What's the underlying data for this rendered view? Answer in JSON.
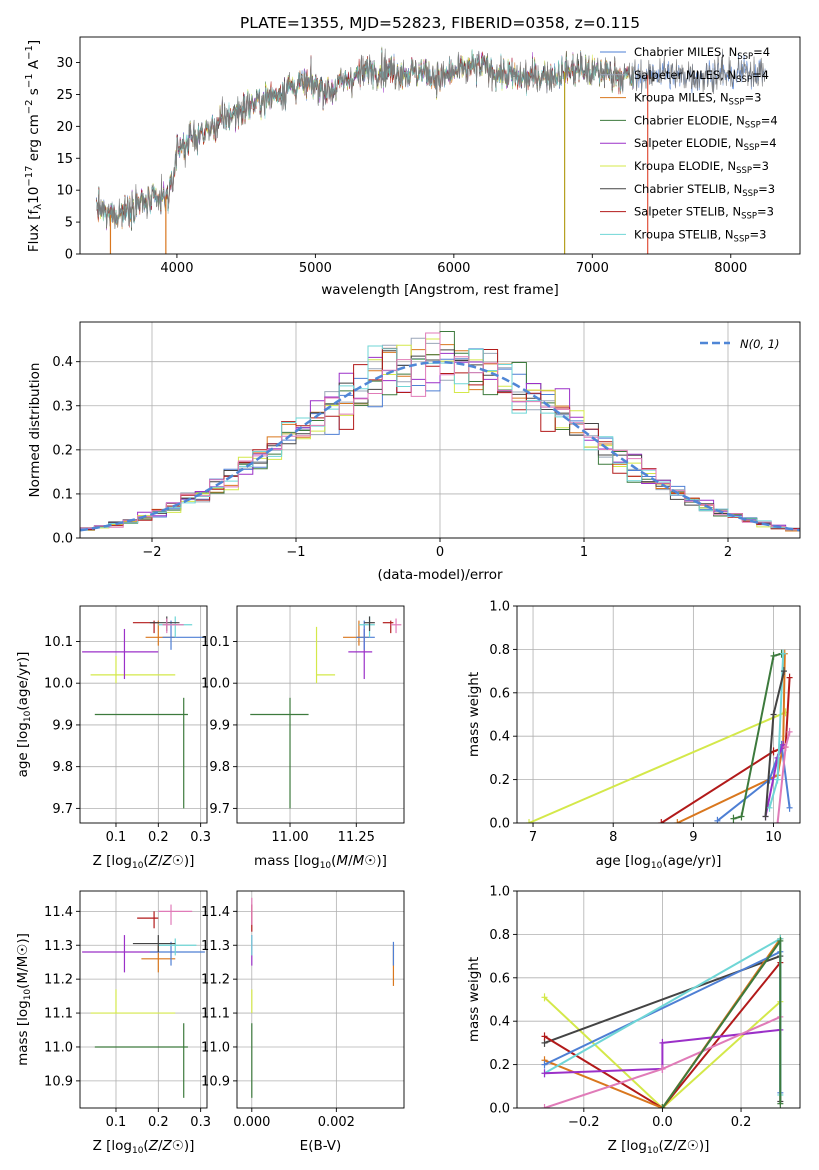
{
  "figure_title": "PLATE=1355, MJD=52823, FIBERID=0358, z=0.115",
  "colors": {
    "chabrier_miles": "#4e7fd4",
    "salpeter_miles": "#9aa6b8",
    "kroupa_miles": "#d9771e",
    "chabrier_elodie": "#3d7a3d",
    "salpeter_elodie": "#9b30c8",
    "kroupa_elodie": "#d4e84a",
    "chabrier_stelib": "#444444",
    "salpeter_stelib": "#b21a1a",
    "kroupa_stelib": "#6fd6d6",
    "pink": "#e07bb8",
    "gauss": "#4f86d6",
    "grid": "#b0b0b0"
  },
  "chart_data": [
    {
      "id": "spectrum",
      "type": "line",
      "title": "PLATE=1355, MJD=52823, FIBERID=0358, z=0.115",
      "xlabel": "wavelength [Angstrom, rest frame]",
      "ylabel": "Flux [f_λ 10^-17 erg cm^-2 s^-1 A^-1]",
      "xlim": [
        3300,
        8500
      ],
      "ylim": [
        0,
        34
      ],
      "xticks": [
        4000,
        5000,
        6000,
        7000,
        8000
      ],
      "yticks": [
        0,
        5,
        10,
        15,
        20,
        25,
        30
      ],
      "grid": false,
      "legend_position": "top-right",
      "continuum": {
        "x": [
          3420,
          3500,
          3600,
          3700,
          3800,
          3900,
          3960,
          4000,
          4100,
          4200,
          4300,
          4400,
          4500,
          4600,
          4700,
          4800,
          4900,
          5000,
          5100,
          5200,
          5300,
          5400,
          5500,
          5600,
          5700,
          5800,
          5900,
          6000,
          6100,
          6200,
          6300,
          6400,
          6500,
          6600,
          6700,
          6800,
          6900,
          7000,
          7100,
          7200,
          7300,
          7400,
          7500,
          7600,
          7700,
          7800,
          7900,
          8000,
          8100,
          8250
        ],
        "y": [
          7.5,
          6.0,
          6.5,
          8.0,
          8.0,
          8.5,
          10.0,
          16.5,
          18.0,
          19.0,
          20.5,
          22.0,
          23.0,
          24.0,
          25.0,
          26.0,
          26.5,
          26.5,
          25.5,
          27.0,
          28.0,
          29.0,
          29.0,
          28.5,
          28.5,
          28.5,
          27.5,
          28.5,
          29.0,
          29.5,
          28.5,
          28.0,
          27.5,
          28.0,
          28.0,
          28.5,
          29.0,
          28.5,
          28.5,
          28.0,
          27.5,
          28.0,
          28.5,
          28.0,
          28.0,
          28.0,
          28.5,
          28.0,
          28.5,
          28.5
        ]
      },
      "series": [
        {
          "name": "Chabrier MILES, N_SSP=4",
          "color": "#4e7fd4"
        },
        {
          "name": "Salpeter MILES, N_SSP=4",
          "color": "#9aa6b8"
        },
        {
          "name": "Kroupa MILES, N_SSP=3",
          "color": "#d9771e"
        },
        {
          "name": "Chabrier ELODIE, N_SSP=4",
          "color": "#3d7a3d"
        },
        {
          "name": "Salpeter ELODIE, N_SSP=4",
          "color": "#9b30c8"
        },
        {
          "name": "Kroupa ELODIE, N_SSP=3",
          "color": "#d4e84a"
        },
        {
          "name": "Chabrier STELIB, N_SSP=3",
          "color": "#444444"
        },
        {
          "name": "Salpeter STELIB, N_SSP=3",
          "color": "#b21a1a"
        },
        {
          "name": "Kroupa STELIB, N_SSP=3",
          "color": "#6fd6d6"
        }
      ],
      "vertical_drops": [
        {
          "x": 3520,
          "color": "#d9771e"
        },
        {
          "x": 3920,
          "color": "#d9771e"
        },
        {
          "x": 6800,
          "color": "#b5a020"
        },
        {
          "x": 7400,
          "color": "#e0503a"
        }
      ]
    },
    {
      "id": "residuals",
      "type": "histogram",
      "xlabel": "(data-model)/error",
      "ylabel": "Normed distribution",
      "xlim": [
        -2.5,
        2.5
      ],
      "ylim": [
        0,
        0.49
      ],
      "xticks": [
        -2,
        -1,
        0,
        1,
        2
      ],
      "yticks": [
        0.0,
        0.1,
        0.2,
        0.3,
        0.4
      ],
      "grid": true,
      "legend_position": "top-right",
      "legend": [
        {
          "name": "N(0,1)",
          "style": "dashed",
          "color": "#4f86d6"
        }
      ],
      "bin_width": 0.1,
      "bin_start": -2.5
    },
    {
      "id": "age_vs_Z",
      "type": "errorbar",
      "xlabel": "Z [log10(Z/Z☉)]",
      "ylabel": "age  [log10(age/yr)]",
      "xlim": [
        0.015,
        0.315
      ],
      "ylim": [
        9.665,
        10.185
      ],
      "xticks": [
        0.1,
        0.2,
        0.3
      ],
      "yticks": [
        9.7,
        9.8,
        9.9,
        10.0,
        10.1
      ],
      "grid": true,
      "points": [
        {
          "x": 0.26,
          "y": 9.925,
          "xerr": [
            0.05,
            0.27
          ],
          "yerr": [
            9.7,
            9.965
          ],
          "color": "#3d7a3d"
        },
        {
          "x": 0.1,
          "y": 10.02,
          "xerr": [
            0.04,
            0.24
          ],
          "yerr": [
            10.0,
            10.065
          ],
          "color": "#d4e84a"
        },
        {
          "x": 0.12,
          "y": 10.075,
          "xerr": [
            0.02,
            0.2
          ],
          "yerr": [
            10.01,
            10.13
          ],
          "color": "#9b30c8"
        },
        {
          "x": 0.19,
          "y": 10.145,
          "xerr": [
            0.14,
            0.2
          ],
          "yerr": [
            10.12,
            10.15
          ],
          "color": "#b21a1a"
        },
        {
          "x": 0.2,
          "y": 10.11,
          "xerr": [
            0.17,
            0.24
          ],
          "yerr": [
            10.09,
            10.15
          ],
          "color": "#d9771e"
        },
        {
          "x": 0.23,
          "y": 10.11,
          "xerr": [
            0.21,
            0.31
          ],
          "yerr": [
            10.08,
            10.15
          ],
          "color": "#4e7fd4"
        },
        {
          "x": 0.24,
          "y": 10.14,
          "xerr": [
            0.2,
            0.28
          ],
          "yerr": [
            10.11,
            10.16
          ],
          "color": "#6fd6d6"
        },
        {
          "x": 0.22,
          "y": 10.145,
          "xerr": [
            0.18,
            0.25
          ],
          "yerr": [
            10.125,
            10.16
          ],
          "color": "#444444"
        },
        {
          "x": 0.22,
          "y": 10.14,
          "xerr": [
            0.21,
            0.26
          ],
          "yerr": [
            10.12,
            10.155
          ],
          "color": "#e07bb8"
        }
      ]
    },
    {
      "id": "age_vs_mass",
      "type": "errorbar",
      "xlabel": "mass [log10(M/M☉)]",
      "ylabel": "",
      "xlim": [
        10.8,
        11.43
      ],
      "ylim": [
        9.665,
        10.185
      ],
      "xticks": [
        11.0,
        11.25
      ],
      "yticks": [
        9.7,
        9.8,
        9.9,
        10.0,
        10.1
      ],
      "grid": true,
      "points": [
        {
          "x": 11.0,
          "y": 9.925,
          "xerr": [
            10.85,
            11.07
          ],
          "yerr": [
            9.7,
            9.965
          ],
          "color": "#3d7a3d"
        },
        {
          "x": 11.1,
          "y": 10.02,
          "xerr": [
            11.1,
            11.17
          ],
          "yerr": [
            10.0,
            10.135
          ],
          "color": "#d4e84a"
        },
        {
          "x": 11.28,
          "y": 10.075,
          "xerr": [
            11.22,
            11.31
          ],
          "yerr": [
            10.01,
            10.13
          ],
          "color": "#9b30c8"
        },
        {
          "x": 11.38,
          "y": 10.145,
          "xerr": [
            11.35,
            11.39
          ],
          "yerr": [
            10.12,
            10.15
          ],
          "color": "#b21a1a"
        },
        {
          "x": 11.26,
          "y": 10.11,
          "xerr": [
            11.2,
            11.3
          ],
          "yerr": [
            10.09,
            10.15
          ],
          "color": "#d9771e"
        },
        {
          "x": 11.28,
          "y": 10.11,
          "xerr": [
            11.25,
            11.32
          ],
          "yerr": [
            10.08,
            10.15
          ],
          "color": "#4e7fd4"
        },
        {
          "x": 11.3,
          "y": 10.14,
          "xerr": [
            11.26,
            11.32
          ],
          "yerr": [
            10.11,
            10.16
          ],
          "color": "#6fd6d6"
        },
        {
          "x": 11.3,
          "y": 10.145,
          "xerr": [
            11.28,
            11.32
          ],
          "yerr": [
            10.125,
            10.16
          ],
          "color": "#444444"
        },
        {
          "x": 11.4,
          "y": 10.14,
          "xerr": [
            11.38,
            11.42
          ],
          "yerr": [
            10.12,
            10.155
          ],
          "color": "#e07bb8"
        }
      ]
    },
    {
      "id": "mass_weight_vs_age",
      "type": "line",
      "xlabel": "age  [log10(age/yr)]",
      "ylabel": "mass weight",
      "xlim": [
        6.8,
        10.33
      ],
      "ylim": [
        0,
        1.0
      ],
      "xticks": [
        7,
        8,
        9,
        10
      ],
      "yticks": [
        0.0,
        0.2,
        0.4,
        0.6,
        0.8,
        1.0
      ],
      "grid": true,
      "series": [
        {
          "color": "#d4e84a",
          "x": [
            6.95,
            10.15
          ],
          "y": [
            0.0,
            0.51
          ]
        },
        {
          "color": "#b21a1a",
          "x": [
            8.6,
            10.0,
            10.15,
            10.2
          ],
          "y": [
            0.0,
            0.33,
            0.35,
            0.67
          ]
        },
        {
          "color": "#d9771e",
          "x": [
            8.8,
            10.05,
            10.12,
            10.14
          ],
          "y": [
            0.0,
            0.22,
            0.36,
            0.78
          ]
        },
        {
          "color": "#4e7fd4",
          "x": [
            9.3,
            9.95,
            10.1,
            10.2
          ],
          "y": [
            0.01,
            0.2,
            0.36,
            0.07
          ]
        },
        {
          "color": "#3d7a3d",
          "x": [
            9.5,
            9.6,
            10.0,
            10.1
          ],
          "y": [
            0.02,
            0.03,
            0.77,
            0.78
          ]
        },
        {
          "color": "#9b30c8",
          "x": [
            9.9,
            10.05,
            10.12
          ],
          "y": [
            0.03,
            0.3,
            0.36
          ]
        },
        {
          "color": "#6fd6d6",
          "x": [
            9.95,
            10.05,
            10.12
          ],
          "y": [
            0.07,
            0.2,
            0.78
          ]
        },
        {
          "color": "#e07bb8",
          "x": [
            10.05,
            10.15,
            10.2
          ],
          "y": [
            0.0,
            0.35,
            0.42
          ]
        },
        {
          "color": "#444444",
          "x": [
            9.9,
            10.0,
            10.13
          ],
          "y": [
            0.03,
            0.5,
            0.7
          ]
        }
      ]
    },
    {
      "id": "mass_vs_Z",
      "type": "errorbar",
      "xlabel": "Z [log10(Z/Z☉)]",
      "ylabel": "mass [log10(M/M☉)]",
      "xlim": [
        0.015,
        0.315
      ],
      "ylim": [
        10.82,
        11.46
      ],
      "xticks": [
        0.1,
        0.2,
        0.3
      ],
      "yticks": [
        10.9,
        11.0,
        11.1,
        11.2,
        11.3,
        11.4
      ],
      "grid": true,
      "points": [
        {
          "x": 0.26,
          "y": 11.0,
          "xerr": [
            0.05,
            0.27
          ],
          "yerr": [
            10.85,
            11.07
          ],
          "color": "#3d7a3d"
        },
        {
          "x": 0.1,
          "y": 11.1,
          "xerr": [
            0.04,
            0.24
          ],
          "yerr": [
            11.1,
            11.17
          ],
          "color": "#d4e84a"
        },
        {
          "x": 0.12,
          "y": 11.28,
          "xerr": [
            0.02,
            0.2
          ],
          "yerr": [
            11.22,
            11.33
          ],
          "color": "#9b30c8"
        },
        {
          "x": 0.19,
          "y": 11.38,
          "xerr": [
            0.15,
            0.2
          ],
          "yerr": [
            11.35,
            11.4
          ],
          "color": "#b21a1a"
        },
        {
          "x": 0.2,
          "y": 11.26,
          "xerr": [
            0.16,
            0.24
          ],
          "yerr": [
            11.22,
            11.3
          ],
          "color": "#d9771e"
        },
        {
          "x": 0.23,
          "y": 11.28,
          "xerr": [
            0.18,
            0.31
          ],
          "yerr": [
            11.24,
            11.31
          ],
          "color": "#4e7fd4"
        },
        {
          "x": 0.24,
          "y": 11.3,
          "xerr": [
            0.2,
            0.29
          ],
          "yerr": [
            11.27,
            11.32
          ],
          "color": "#6fd6d6"
        },
        {
          "x": 0.2,
          "y": 11.305,
          "xerr": [
            0.14,
            0.24
          ],
          "yerr": [
            11.28,
            11.33
          ],
          "color": "#444444"
        },
        {
          "x": 0.23,
          "y": 11.4,
          "xerr": [
            0.2,
            0.28
          ],
          "yerr": [
            11.36,
            11.42
          ],
          "color": "#e07bb8"
        }
      ]
    },
    {
      "id": "mass_vs_EBV",
      "type": "errorbar",
      "xlabel": "E(B-V)",
      "ylabel": "",
      "xlim": [
        -0.00035,
        0.0036
      ],
      "ylim": [
        10.82,
        11.46
      ],
      "xticks": [
        0.0,
        0.002
      ],
      "xtick_labels": [
        "0.000",
        "0.002"
      ],
      "yticks": [
        10.9,
        11.0,
        11.1,
        11.2,
        11.3,
        11.4
      ],
      "grid": true,
      "points": [
        {
          "x": 0.0,
          "y": 11.0,
          "xerr": [
            0.0,
            0.0
          ],
          "yerr": [
            10.85,
            11.07
          ],
          "color": "#3d7a3d"
        },
        {
          "x": 0.0,
          "y": 11.1,
          "xerr": [
            0.0,
            0.0
          ],
          "yerr": [
            11.1,
            11.17
          ],
          "color": "#d4e84a"
        },
        {
          "x": 0.0,
          "y": 11.28,
          "xerr": [
            0.0,
            0.0
          ],
          "yerr": [
            11.24,
            11.33
          ],
          "color": "#9b30c8"
        },
        {
          "x": 0.0,
          "y": 11.38,
          "xerr": [
            0.0,
            0.0
          ],
          "yerr": [
            11.34,
            11.42
          ],
          "color": "#b21a1a"
        },
        {
          "x": 0.0,
          "y": 11.4,
          "xerr": [
            0.0,
            0.0
          ],
          "yerr": [
            11.36,
            11.44
          ],
          "color": "#e07bb8"
        },
        {
          "x": 0.0,
          "y": 11.3,
          "xerr": [
            0.0,
            0.0
          ],
          "yerr": [
            11.27,
            11.33
          ],
          "color": "#6fd6d6"
        },
        {
          "x": 0.00335,
          "y": 11.26,
          "xerr": [
            0.00335,
            0.00335
          ],
          "yerr": [
            11.18,
            11.3
          ],
          "color": "#d9771e"
        },
        {
          "x": 0.00335,
          "y": 11.28,
          "xerr": [
            0.00335,
            0.00335
          ],
          "yerr": [
            11.24,
            11.31
          ],
          "color": "#4e7fd4"
        }
      ]
    },
    {
      "id": "mass_weight_vs_Z",
      "type": "line",
      "xlabel": "Z [log10(Z/Z☉)]",
      "ylabel": "mass weight",
      "xlim": [
        -0.37,
        0.35
      ],
      "ylim": [
        0,
        1.0
      ],
      "xticks": [
        -0.2,
        0.0,
        0.2
      ],
      "yticks": [
        0.0,
        0.2,
        0.4,
        0.6,
        0.8,
        1.0
      ],
      "grid": true,
      "series": [
        {
          "color": "#d4e84a",
          "x": [
            -0.3,
            0.0,
            0.3
          ],
          "y": [
            0.51,
            0.0,
            0.49
          ]
        },
        {
          "color": "#444444",
          "x": [
            -0.3,
            0.3,
            0.3
          ],
          "y": [
            0.3,
            0.7,
            0.03
          ]
        },
        {
          "color": "#b21a1a",
          "x": [
            -0.3,
            0.0,
            0.3
          ],
          "y": [
            0.33,
            0.0,
            0.67
          ]
        },
        {
          "color": "#d9771e",
          "x": [
            -0.3,
            0.0,
            0.3
          ],
          "y": [
            0.22,
            0.0,
            0.78
          ]
        },
        {
          "color": "#4e7fd4",
          "x": [
            -0.3,
            0.3,
            0.3
          ],
          "y": [
            0.2,
            0.72,
            0.07
          ]
        },
        {
          "color": "#6fd6d6",
          "x": [
            -0.3,
            0.3,
            0.3
          ],
          "y": [
            0.16,
            0.78,
            0.06
          ]
        },
        {
          "color": "#9b30c8",
          "x": [
            -0.3,
            0.0,
            0.0,
            0.3
          ],
          "y": [
            0.16,
            0.18,
            0.3,
            0.36
          ]
        },
        {
          "color": "#e07bb8",
          "x": [
            -0.3,
            0.0,
            0.3
          ],
          "y": [
            0.0,
            0.18,
            0.42
          ]
        },
        {
          "color": "#3d7a3d",
          "x": [
            0.0,
            0.3,
            0.3
          ],
          "y": [
            0.0,
            0.77,
            0.02
          ]
        }
      ]
    }
  ]
}
